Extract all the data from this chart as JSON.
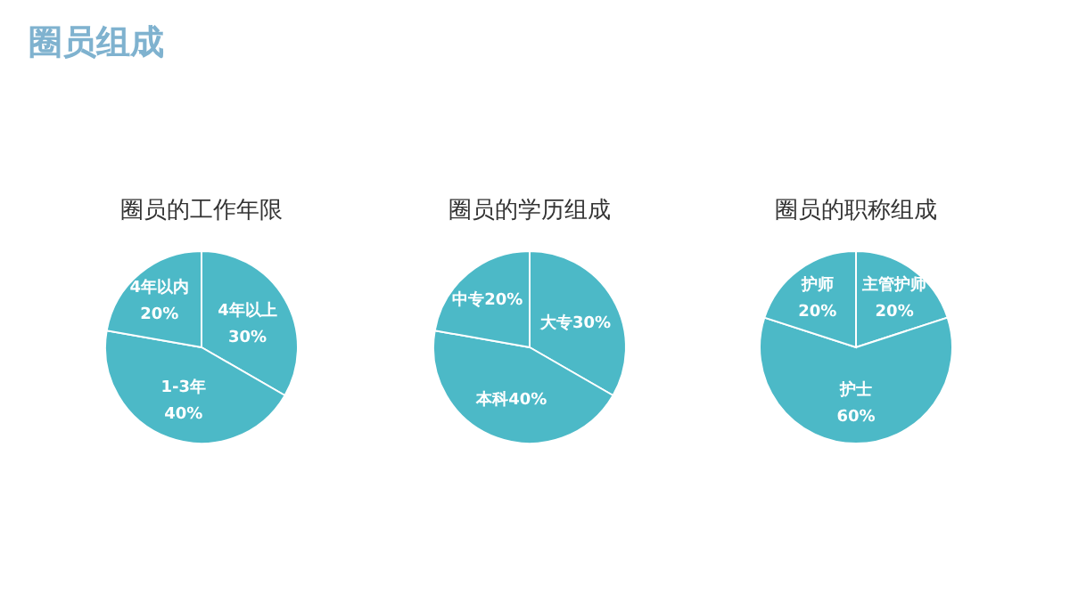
{
  "chart_data": [
    {
      "type": "pie",
      "title": "圈员的工作年限",
      "annotations": [
        "圈员组成"
      ],
      "categories": [
        "4年以上",
        "1-3年",
        "4年以内"
      ],
      "values": [
        30,
        40,
        20
      ],
      "value_labels": [
        "30%",
        "40%",
        "20%"
      ],
      "colors": [
        "#4cb9c7",
        "#4cb9c7",
        "#4cb9c7"
      ]
    },
    {
      "type": "pie",
      "title": "圈员的学历组成",
      "categories": [
        "大专",
        "本科",
        "中专"
      ],
      "values": [
        30,
        40,
        20
      ],
      "value_labels": [
        "30%",
        "40%",
        "20%"
      ],
      "colors": [
        "#4cb9c7",
        "#4cb9c7",
        "#4cb9c7"
      ]
    },
    {
      "type": "pie",
      "title": "圈员的职称组成",
      "categories": [
        "主管护师",
        "护士",
        "护师"
      ],
      "values": [
        20,
        60,
        20
      ],
      "value_labels": [
        "20%",
        "60%",
        "20%"
      ],
      "colors": [
        "#4cb9c7",
        "#4cb9c7",
        "#4cb9c7"
      ]
    }
  ]
}
